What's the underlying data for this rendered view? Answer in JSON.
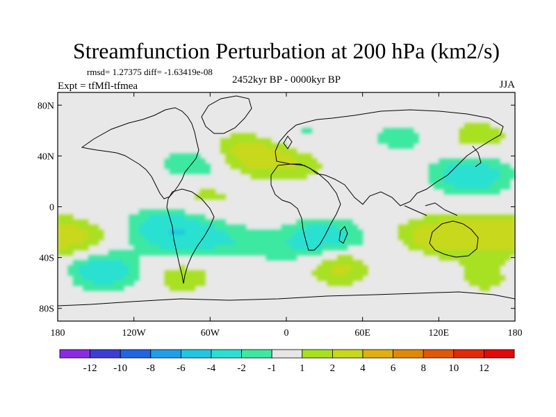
{
  "chart_data": {
    "type": "heatmap",
    "title": "Streamfunction Perturbation at 200 hPa (km2/s)",
    "stats_text": "rmsd= 1.27375  diff= -1.63419e-08",
    "subtitle": "2452kyr BP - 0000kyr BP",
    "left_label": "Expt = tfMfl-tfmea",
    "right_label": "JJA",
    "x_axis": {
      "range": [
        -180,
        180
      ],
      "ticks": [
        -180,
        -120,
        -60,
        0,
        60,
        120,
        180
      ],
      "tick_labels": [
        "180",
        "120W",
        "60W",
        "0",
        "60E",
        "120E",
        "180"
      ]
    },
    "y_axis": {
      "range": [
        -90,
        90
      ],
      "ticks": [
        80,
        40,
        0,
        -40,
        -80
      ],
      "tick_labels": [
        "80N",
        "40N",
        "0",
        "40S",
        "80S"
      ]
    },
    "colorbar": {
      "levels": [
        -12,
        -10,
        -8,
        -6,
        -4,
        -2,
        -1,
        1,
        2,
        4,
        6,
        8,
        10,
        12
      ],
      "labels": [
        "-12",
        "-10",
        "-8",
        "-6",
        "-4",
        "-2",
        "-1",
        "1",
        "2",
        "4",
        "6",
        "8",
        "10",
        "12"
      ],
      "colors": [
        "#8a2be2",
        "#3d3dd6",
        "#1f66e0",
        "#1f9fe8",
        "#22c6e0",
        "#2ae0d0",
        "#3ee8a0",
        "#e6e6e6",
        "#a8e020",
        "#c8d81a",
        "#e0b010",
        "#e08808",
        "#e05808",
        "#e02a08",
        "#e00a0a"
      ]
    },
    "anomalies": [
      {
        "lon": -170,
        "lat": -25,
        "value": 2.5
      },
      {
        "lon": -145,
        "lat": -50,
        "value": -3.5
      },
      {
        "lon": -85,
        "lat": -22,
        "value": -3.2
      },
      {
        "lon": -40,
        "lat": -28,
        "value": -1.6
      },
      {
        "lon": -82,
        "lat": -55,
        "value": 1.6
      },
      {
        "lon": -100,
        "lat": -12,
        "value": -1.4
      },
      {
        "lon": -30,
        "lat": 42,
        "value": 3.0
      },
      {
        "lon": 5,
        "lat": 35,
        "value": 1.8
      },
      {
        "lon": 10,
        "lat": 55,
        "value": -1.4
      },
      {
        "lon": -70,
        "lat": 32,
        "value": -2.2
      },
      {
        "lon": -65,
        "lat": 10,
        "value": 1.5
      },
      {
        "lon": 30,
        "lat": -25,
        "value": -3.2
      },
      {
        "lon": 40,
        "lat": -45,
        "value": 3.3
      },
      {
        "lon": 15,
        "lat": -40,
        "value": -1.3
      },
      {
        "lon": 90,
        "lat": 55,
        "value": -1.4
      },
      {
        "lon": 150,
        "lat": 55,
        "value": 1.6
      },
      {
        "lon": 145,
        "lat": 25,
        "value": -3.4
      },
      {
        "lon": 115,
        "lat": -25,
        "value": 3.2
      },
      {
        "lon": 155,
        "lat": -20,
        "value": 2.2
      },
      {
        "lon": 85,
        "lat": -40,
        "value": -1.5
      },
      {
        "lon": 160,
        "lat": -55,
        "value": 1.5
      }
    ]
  }
}
